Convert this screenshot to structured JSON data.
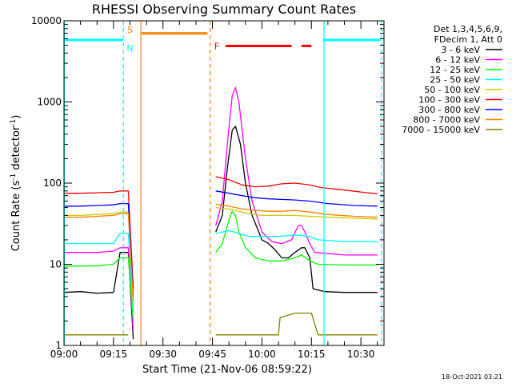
{
  "chart_data": {
    "type": "line",
    "title": "RHESSI Observing Summary Count Rates",
    "xlabel": "Start Time (21-Nov-06 08:59:22)",
    "ylabel": "Count Rate (s^-1 detector^-1)",
    "ylabel_parts": {
      "prefix": "Count Rate (s",
      "exp1": "-1",
      "mid": " detector",
      "exp2": "-1",
      "suffix": ")"
    },
    "x_scale": "linear",
    "y_scale": "log",
    "grid": false,
    "ylim": [
      1,
      10000
    ],
    "xlim": [
      "09:00",
      "10:37"
    ],
    "x_ticks": [
      {
        "label": "09:00",
        "minutes": 0
      },
      {
        "label": "09:15",
        "minutes": 15
      },
      {
        "label": "09:30",
        "minutes": 30
      },
      {
        "label": "09:45",
        "minutes": 45
      },
      {
        "label": "10:00",
        "minutes": 60
      },
      {
        "label": "10:15",
        "minutes": 75
      },
      {
        "label": "10:30",
        "minutes": 90
      }
    ],
    "y_ticks": [
      {
        "label": "1",
        "value": 1
      },
      {
        "label": "10",
        "value": 10
      },
      {
        "label": "100",
        "value": 100
      },
      {
        "label": "1000",
        "value": 1000
      },
      {
        "label": "10000",
        "value": 10000
      }
    ],
    "legend": {
      "position": "right",
      "header": [
        "Det 1,3,4,5,6,9,",
        "FDecim 1, Att 0"
      ],
      "entries": [
        {
          "label": "3 - 6 keV",
          "color": "#000000"
        },
        {
          "label": "6 - 12 keV",
          "color": "#ff00ff"
        },
        {
          "label": "12 - 25 keV",
          "color": "#00ff00"
        },
        {
          "label": "25 - 50 keV",
          "color": "#00ffff"
        },
        {
          "label": "50 - 100 keV",
          "color": "#cccc00"
        },
        {
          "label": "100 - 300 keV",
          "color": "#ff0000"
        },
        {
          "label": "300 - 800 keV",
          "color": "#0000ff"
        },
        {
          "label": "800 - 7000 keV",
          "color": "#ff8000"
        },
        {
          "label": "7000 - 15000 keV",
          "color": "#808000"
        }
      ]
    },
    "series": [
      {
        "name": "3 - 6 keV",
        "color": "#000000",
        "segments": [
          [
            [
              0,
              4.5
            ],
            [
              5,
              4.6
            ],
            [
              10,
              4.4
            ],
            [
              15,
              4.5
            ],
            [
              17,
              14
            ],
            [
              19.5,
              14
            ],
            [
              21,
              1.2
            ]
          ],
          [
            [
              46,
              25
            ],
            [
              48,
              40
            ],
            [
              49.5,
              150
            ],
            [
              51,
              450
            ],
            [
              52,
              500
            ],
            [
              53.5,
              300
            ],
            [
              55,
              100
            ],
            [
              57,
              40
            ],
            [
              60,
              20
            ],
            [
              62,
              18
            ],
            [
              64,
              15
            ],
            [
              66,
              12
            ],
            [
              68,
              12
            ],
            [
              70,
              14
            ],
            [
              72,
              16
            ],
            [
              73,
              16
            ],
            [
              74.5,
              12
            ],
            [
              75.5,
              5
            ],
            [
              79,
              4.6
            ],
            [
              85,
              4.5
            ],
            [
              95,
              4.5
            ]
          ]
        ]
      },
      {
        "name": "6 - 12 keV",
        "color": "#ff00ff",
        "segments": [
          [
            [
              0,
              14
            ],
            [
              5,
              14
            ],
            [
              10,
              14
            ],
            [
              15,
              14.5
            ],
            [
              17,
              16
            ],
            [
              19.5,
              16
            ],
            [
              21,
              1.5
            ]
          ],
          [
            [
              46,
              30
            ],
            [
              48,
              60
            ],
            [
              49.5,
              300
            ],
            [
              51,
              1200
            ],
            [
              52,
              1500
            ],
            [
              53,
              1000
            ],
            [
              55,
              200
            ],
            [
              57,
              60
            ],
            [
              60,
              25
            ],
            [
              63,
              19
            ],
            [
              66,
              18
            ],
            [
              69,
              20
            ],
            [
              71,
              30
            ],
            [
              72,
              30
            ],
            [
              73,
              25
            ],
            [
              74.5,
              18
            ],
            [
              76,
              14
            ],
            [
              85,
              13
            ],
            [
              95,
              13
            ]
          ]
        ]
      },
      {
        "name": "12 - 25 keV",
        "color": "#00ff00",
        "segments": [
          [
            [
              0,
              9.5
            ],
            [
              5,
              9.5
            ],
            [
              10,
              9.6
            ],
            [
              15,
              10
            ],
            [
              17,
              12
            ],
            [
              19.5,
              12
            ],
            [
              21,
              2
            ]
          ],
          [
            [
              46,
              14
            ],
            [
              48,
              18
            ],
            [
              50,
              35
            ],
            [
              51,
              45
            ],
            [
              52,
              40
            ],
            [
              53,
              25
            ],
            [
              55,
              16
            ],
            [
              58,
              12
            ],
            [
              62,
              11
            ],
            [
              66,
              11
            ],
            [
              70,
              12
            ],
            [
              72,
              13
            ],
            [
              74.5,
              11
            ],
            [
              77,
              10
            ],
            [
              85,
              9.8
            ],
            [
              95,
              9.8
            ]
          ]
        ]
      },
      {
        "name": "25 - 50 keV",
        "color": "#00ffff",
        "segments": [
          [
            [
              0,
              18
            ],
            [
              5,
              18
            ],
            [
              10,
              18
            ],
            [
              15,
              18
            ],
            [
              17,
              24
            ],
            [
              19.5,
              24
            ],
            [
              21,
              2.5
            ]
          ],
          [
            [
              46,
              24
            ],
            [
              50,
              26
            ],
            [
              53,
              24
            ],
            [
              56,
              22
            ],
            [
              60,
              22
            ],
            [
              65,
              22
            ],
            [
              70,
              23
            ],
            [
              74.5,
              22
            ],
            [
              77,
              20
            ],
            [
              85,
              19
            ],
            [
              95,
              19
            ]
          ]
        ]
      },
      {
        "name": "50 - 100 keV",
        "color": "#cccc00",
        "segments": [
          [
            [
              0,
              40
            ],
            [
              5,
              40
            ],
            [
              10,
              41
            ],
            [
              15,
              42
            ],
            [
              17,
              44
            ],
            [
              19.5,
              44
            ],
            [
              21,
              3
            ]
          ],
          [
            [
              46,
              50
            ],
            [
              50,
              48
            ],
            [
              53,
              45
            ],
            [
              56,
              42
            ],
            [
              60,
              40
            ],
            [
              65,
              40
            ],
            [
              70,
              40
            ],
            [
              74.5,
              39
            ],
            [
              80,
              38
            ],
            [
              88,
              37
            ],
            [
              95,
              36
            ]
          ]
        ]
      },
      {
        "name": "100 - 300 keV",
        "color": "#ff0000",
        "segments": [
          [
            [
              0,
              75
            ],
            [
              5,
              75
            ],
            [
              10,
              76
            ],
            [
              15,
              77
            ],
            [
              17,
              80
            ],
            [
              19.5,
              80
            ],
            [
              21,
              5
            ]
          ],
          [
            [
              46,
              120
            ],
            [
              50,
              110
            ],
            [
              54,
              95
            ],
            [
              58,
              90
            ],
            [
              62,
              92
            ],
            [
              66,
              98
            ],
            [
              70,
              100
            ],
            [
              74.5,
              95
            ],
            [
              78,
              88
            ],
            [
              85,
              82
            ],
            [
              92,
              76
            ],
            [
              95,
              74
            ]
          ]
        ]
      },
      {
        "name": "300 - 800 keV",
        "color": "#0000ff",
        "segments": [
          [
            [
              0,
              52
            ],
            [
              5,
              52
            ],
            [
              10,
              53
            ],
            [
              15,
              54
            ],
            [
              17,
              56
            ],
            [
              19.5,
              56
            ],
            [
              21,
              4
            ]
          ],
          [
            [
              46,
              80
            ],
            [
              50,
              75
            ],
            [
              54,
              70
            ],
            [
              58,
              66
            ],
            [
              62,
              64
            ],
            [
              66,
              63
            ],
            [
              70,
              62
            ],
            [
              74.5,
              60
            ],
            [
              80,
              56
            ],
            [
              88,
              53
            ],
            [
              95,
              52
            ]
          ]
        ]
      },
      {
        "name": "800 - 7000 keV",
        "color": "#ff8000",
        "segments": [
          [
            [
              0,
              38
            ],
            [
              5,
              38
            ],
            [
              10,
              39
            ],
            [
              15,
              40
            ],
            [
              17,
              42
            ],
            [
              19.5,
              42
            ],
            [
              21,
              3.5
            ]
          ],
          [
            [
              46,
              55
            ],
            [
              50,
              52
            ],
            [
              54,
              48
            ],
            [
              58,
              46
            ],
            [
              62,
              45
            ],
            [
              66,
              45
            ],
            [
              70,
              46
            ],
            [
              74.5,
              44
            ],
            [
              80,
              41
            ],
            [
              88,
              39
            ],
            [
              95,
              38
            ]
          ]
        ]
      },
      {
        "name": "7000 - 15000 keV",
        "color": "#808000",
        "segments": [
          [
            [
              0,
              1.35
            ],
            [
              10,
              1.35
            ],
            [
              18,
              1.35
            ],
            [
              19.5,
              1.35
            ]
          ],
          [
            [
              46,
              1.35
            ],
            [
              55,
              1.35
            ],
            [
              65,
              1.35
            ],
            [
              65.5,
              2.2
            ],
            [
              70,
              2.5
            ],
            [
              75,
              2.5
            ],
            [
              77,
              1.35
            ],
            [
              85,
              1.35
            ],
            [
              95,
              1.35
            ]
          ]
        ]
      }
    ],
    "annotations": {
      "labels": [
        {
          "text": "S",
          "minutes": 20,
          "value": 7800,
          "color": "#ff8000"
        },
        {
          "text": "N",
          "minutes": 20,
          "value": 4600,
          "color": "#00ffff"
        },
        {
          "text": "F",
          "minutes": 46.3,
          "value": 4900,
          "color": "#ff0000"
        }
      ],
      "bars": [
        {
          "from": 0,
          "to": 18,
          "value": 5800,
          "color": "#00ffff"
        },
        {
          "from": 23.5,
          "to": 43.5,
          "value": 7000,
          "color": "#ff8000"
        },
        {
          "from": 49,
          "to": 69,
          "value": 4900,
          "color": "#ff0000"
        },
        {
          "from": 72,
          "to": 75,
          "value": 4900,
          "color": "#ff0000"
        },
        {
          "from": 78.5,
          "to": 96,
          "value": 5800,
          "color": "#00ffff"
        }
      ],
      "vlines": [
        {
          "minutes": 18,
          "color": "#00ffff",
          "dash": true
        },
        {
          "minutes": 23.3,
          "color": "#ff8000",
          "dash": false
        },
        {
          "minutes": 44.3,
          "color": "#ff8000",
          "dash": true
        },
        {
          "minutes": 78.8,
          "color": "#00ffff",
          "dash": false
        },
        {
          "minutes": 96.3,
          "color": "#00ffff",
          "dash": true
        },
        {
          "minutes": 0.1,
          "color": "#00ffff",
          "dash": false
        }
      ]
    }
  },
  "footer": {
    "timestamp": "18-Oct-2021 03:21"
  }
}
